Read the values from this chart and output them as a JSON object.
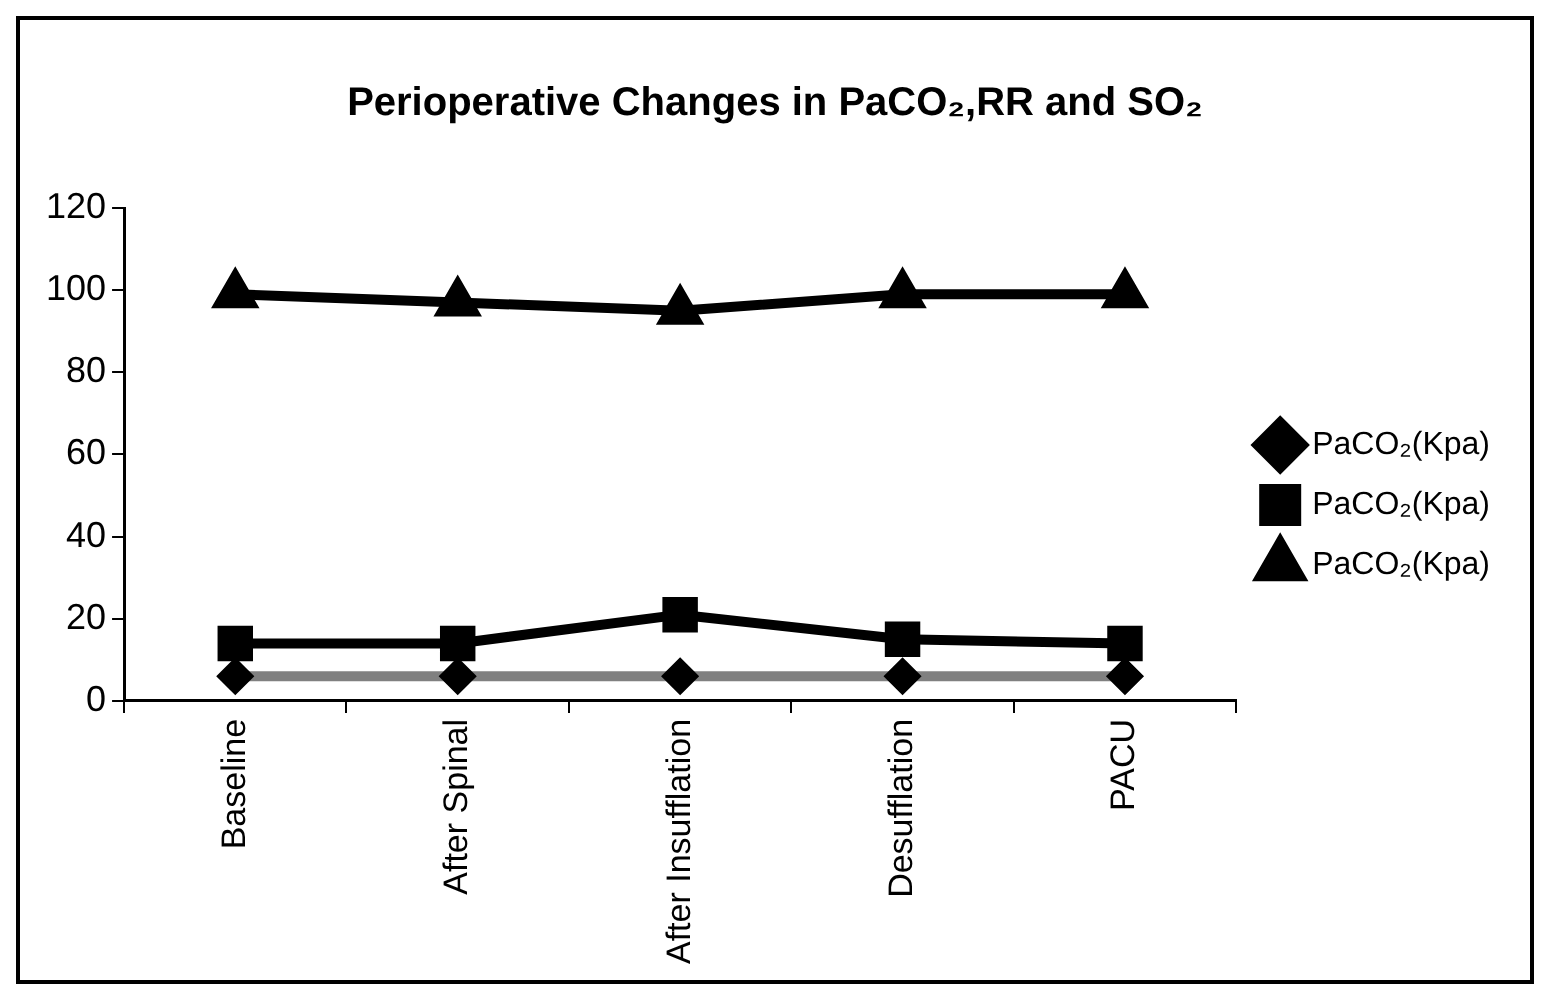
{
  "chart_data": {
    "type": "line",
    "title": "Perioperative Changes in PaCO₂,RR and SO₂",
    "categories": [
      "Baseline",
      "After Spinal",
      "After Insufflation",
      "Desufflation",
      "PACU"
    ],
    "series": [
      {
        "name": "PaCO₂(Kpa)",
        "color": "#808080",
        "marker": "diamond",
        "values": [
          6,
          6,
          6,
          6,
          6
        ]
      },
      {
        "name": "PaCO₂(Kpa)",
        "color": "#000000",
        "marker": "square",
        "values": [
          14,
          14,
          21,
          15,
          14
        ]
      },
      {
        "name": "PaCO₂(Kpa)",
        "color": "#000000",
        "marker": "triangle",
        "values": [
          99,
          97,
          95,
          99,
          99
        ]
      }
    ],
    "ylim": [
      0,
      120
    ],
    "yticks": [
      0,
      20,
      40,
      60,
      80,
      100,
      120
    ],
    "grid": false,
    "legend": "right",
    "line_style": "solid"
  }
}
